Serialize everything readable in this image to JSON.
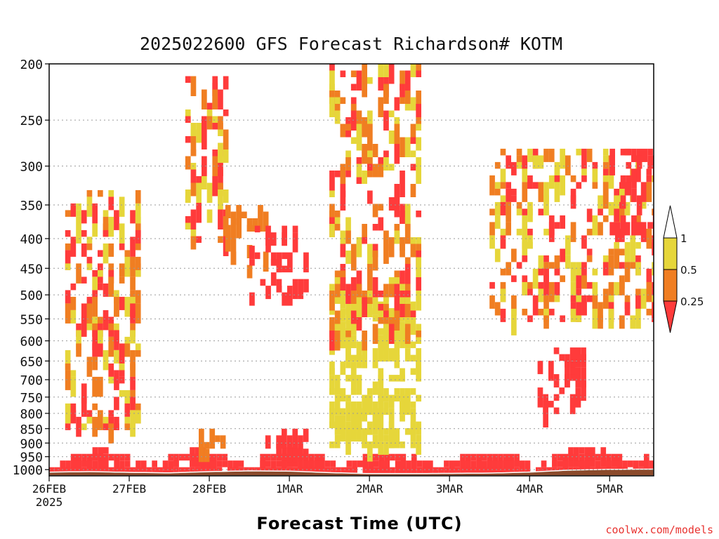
{
  "header": {
    "title": "2025022600 GFS Forecast Richardson# KOTM",
    "xlabel": "Forecast Time (UTC)",
    "credit": "coolwx.com/models"
  },
  "chart_data": {
    "type": "heatmap",
    "title": "2025022600 GFS Forecast Richardson# KOTM",
    "xlabel": "Forecast Time (UTC)",
    "ylabel": "",
    "x_ticks": [
      "26FEB",
      "27FEB",
      "28FEB",
      "1MAR",
      "2MAR",
      "3MAR",
      "4MAR",
      "5MAR"
    ],
    "x_tick_sublabel": "2025",
    "x_range_days": [
      0,
      7.55
    ],
    "y_ticks": [
      200,
      250,
      300,
      350,
      400,
      450,
      500,
      550,
      600,
      650,
      700,
      750,
      800,
      850,
      900,
      950,
      1000
    ],
    "y_range_hPa": [
      200,
      1025
    ],
    "y_scale": "log-pressure",
    "grid": "dotted horizontal at pressure ticks",
    "colorbar": {
      "labels": [
        "1",
        "0.5",
        "0.25"
      ],
      "levels": [
        1,
        0.5,
        0.25
      ],
      "colors": {
        "below_0.25": "#ff3b3b",
        "0.25_to_0.5": "#f07e22",
        "0.5_to_1": "#e6d63a",
        "above_1": "#ffffff"
      },
      "placement": "right"
    },
    "ground_color": "#8b4a2b",
    "surface_pressure_approx": [
      [
        0.0,
        1010
      ],
      [
        0.5,
        1008
      ],
      [
        1.0,
        1011
      ],
      [
        1.5,
        1013
      ],
      [
        2.0,
        1008
      ],
      [
        2.5,
        1005
      ],
      [
        3.0,
        1006
      ],
      [
        3.5,
        1012
      ],
      [
        4.0,
        1016
      ],
      [
        4.5,
        1016
      ],
      [
        5.0,
        1015
      ],
      [
        5.5,
        1014
      ],
      [
        6.0,
        1010
      ],
      [
        6.5,
        1002
      ],
      [
        7.0,
        999
      ],
      [
        7.55,
        998
      ]
    ],
    "regions": [
      {
        "day_start": 0.0,
        "day_end": 7.55,
        "p_top": 915,
        "p_bottom": 1015,
        "class": "red",
        "note": "low-level near-surface band"
      },
      {
        "day_start": 0.2,
        "day_end": 1.1,
        "p_top": 330,
        "p_bottom": 850,
        "class": "mixed",
        "note": "red/orange/yellow streaks"
      },
      {
        "day_start": 1.7,
        "day_end": 2.2,
        "p_top": 210,
        "p_bottom": 400,
        "class": "mixed"
      },
      {
        "day_start": 1.8,
        "day_end": 2.2,
        "p_top": 850,
        "p_bottom": 940,
        "class": "orange"
      },
      {
        "day_start": 2.2,
        "day_end": 2.7,
        "p_top": 350,
        "p_bottom": 450,
        "class": "orange"
      },
      {
        "day_start": 2.5,
        "day_end": 3.2,
        "p_top": 380,
        "p_bottom": 500,
        "class": "red"
      },
      {
        "day_start": 2.7,
        "day_end": 3.3,
        "p_top": 850,
        "p_bottom": 930,
        "class": "red"
      },
      {
        "day_start": 3.5,
        "day_end": 4.6,
        "p_top": 500,
        "p_bottom": 900,
        "class": "yellow",
        "note": "large yellow plume"
      },
      {
        "day_start": 3.5,
        "day_end": 4.6,
        "p_top": 200,
        "p_bottom": 600,
        "class": "mixed"
      },
      {
        "day_start": 5.5,
        "day_end": 7.55,
        "p_top": 280,
        "p_bottom": 550,
        "class": "mixed"
      },
      {
        "day_start": 6.1,
        "day_end": 6.7,
        "p_top": 600,
        "p_bottom": 800,
        "class": "red"
      },
      {
        "day_start": 7.0,
        "day_end": 7.55,
        "p_top": 280,
        "p_bottom": 380,
        "class": "red"
      }
    ]
  }
}
